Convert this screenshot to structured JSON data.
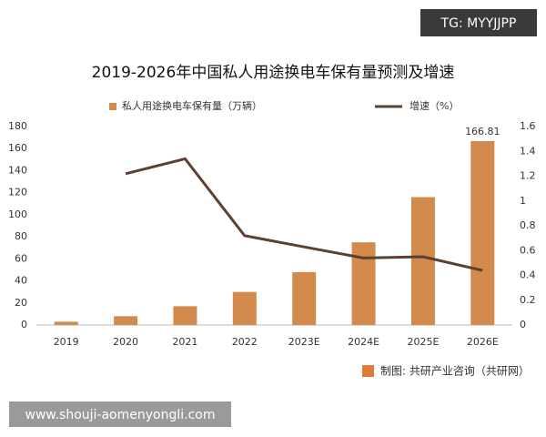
{
  "watermark": "TG: MYYJJPP",
  "source": "制图: 共研产业咨询（共研网）",
  "footer_url": "www.shouji-aomenyongli.com",
  "chart_data": {
    "type": "bar",
    "title": "2019-2026年中国私人用途换电车保有量预测及增速",
    "categories": [
      "2019",
      "2020",
      "2021",
      "2022",
      "2023E",
      "2024E",
      "2025E",
      "2026E"
    ],
    "series": [
      {
        "name": "私人用途换电车保有量（万辆）",
        "type": "bar",
        "color": "#d38a4d",
        "values": [
          3,
          8,
          17,
          30,
          48,
          75,
          116,
          166.81
        ],
        "value_labels": [
          null,
          null,
          null,
          null,
          null,
          null,
          null,
          "166.81"
        ]
      },
      {
        "name": "增速（%）",
        "type": "line",
        "axis": "y2",
        "color": "#5c4031",
        "values": [
          null,
          1.22,
          1.34,
          0.72,
          0.63,
          0.54,
          0.55,
          0.44
        ]
      }
    ],
    "ylim": [
      0,
      180
    ],
    "yticks": [
      0,
      20,
      40,
      60,
      80,
      100,
      120,
      140,
      160,
      180
    ],
    "y2lim": [
      0,
      1.6
    ],
    "y2ticks": [
      0,
      0.2,
      0.4,
      0.6,
      0.8,
      1,
      1.2,
      1.4,
      1.6
    ],
    "grid": false,
    "legend": "top"
  }
}
